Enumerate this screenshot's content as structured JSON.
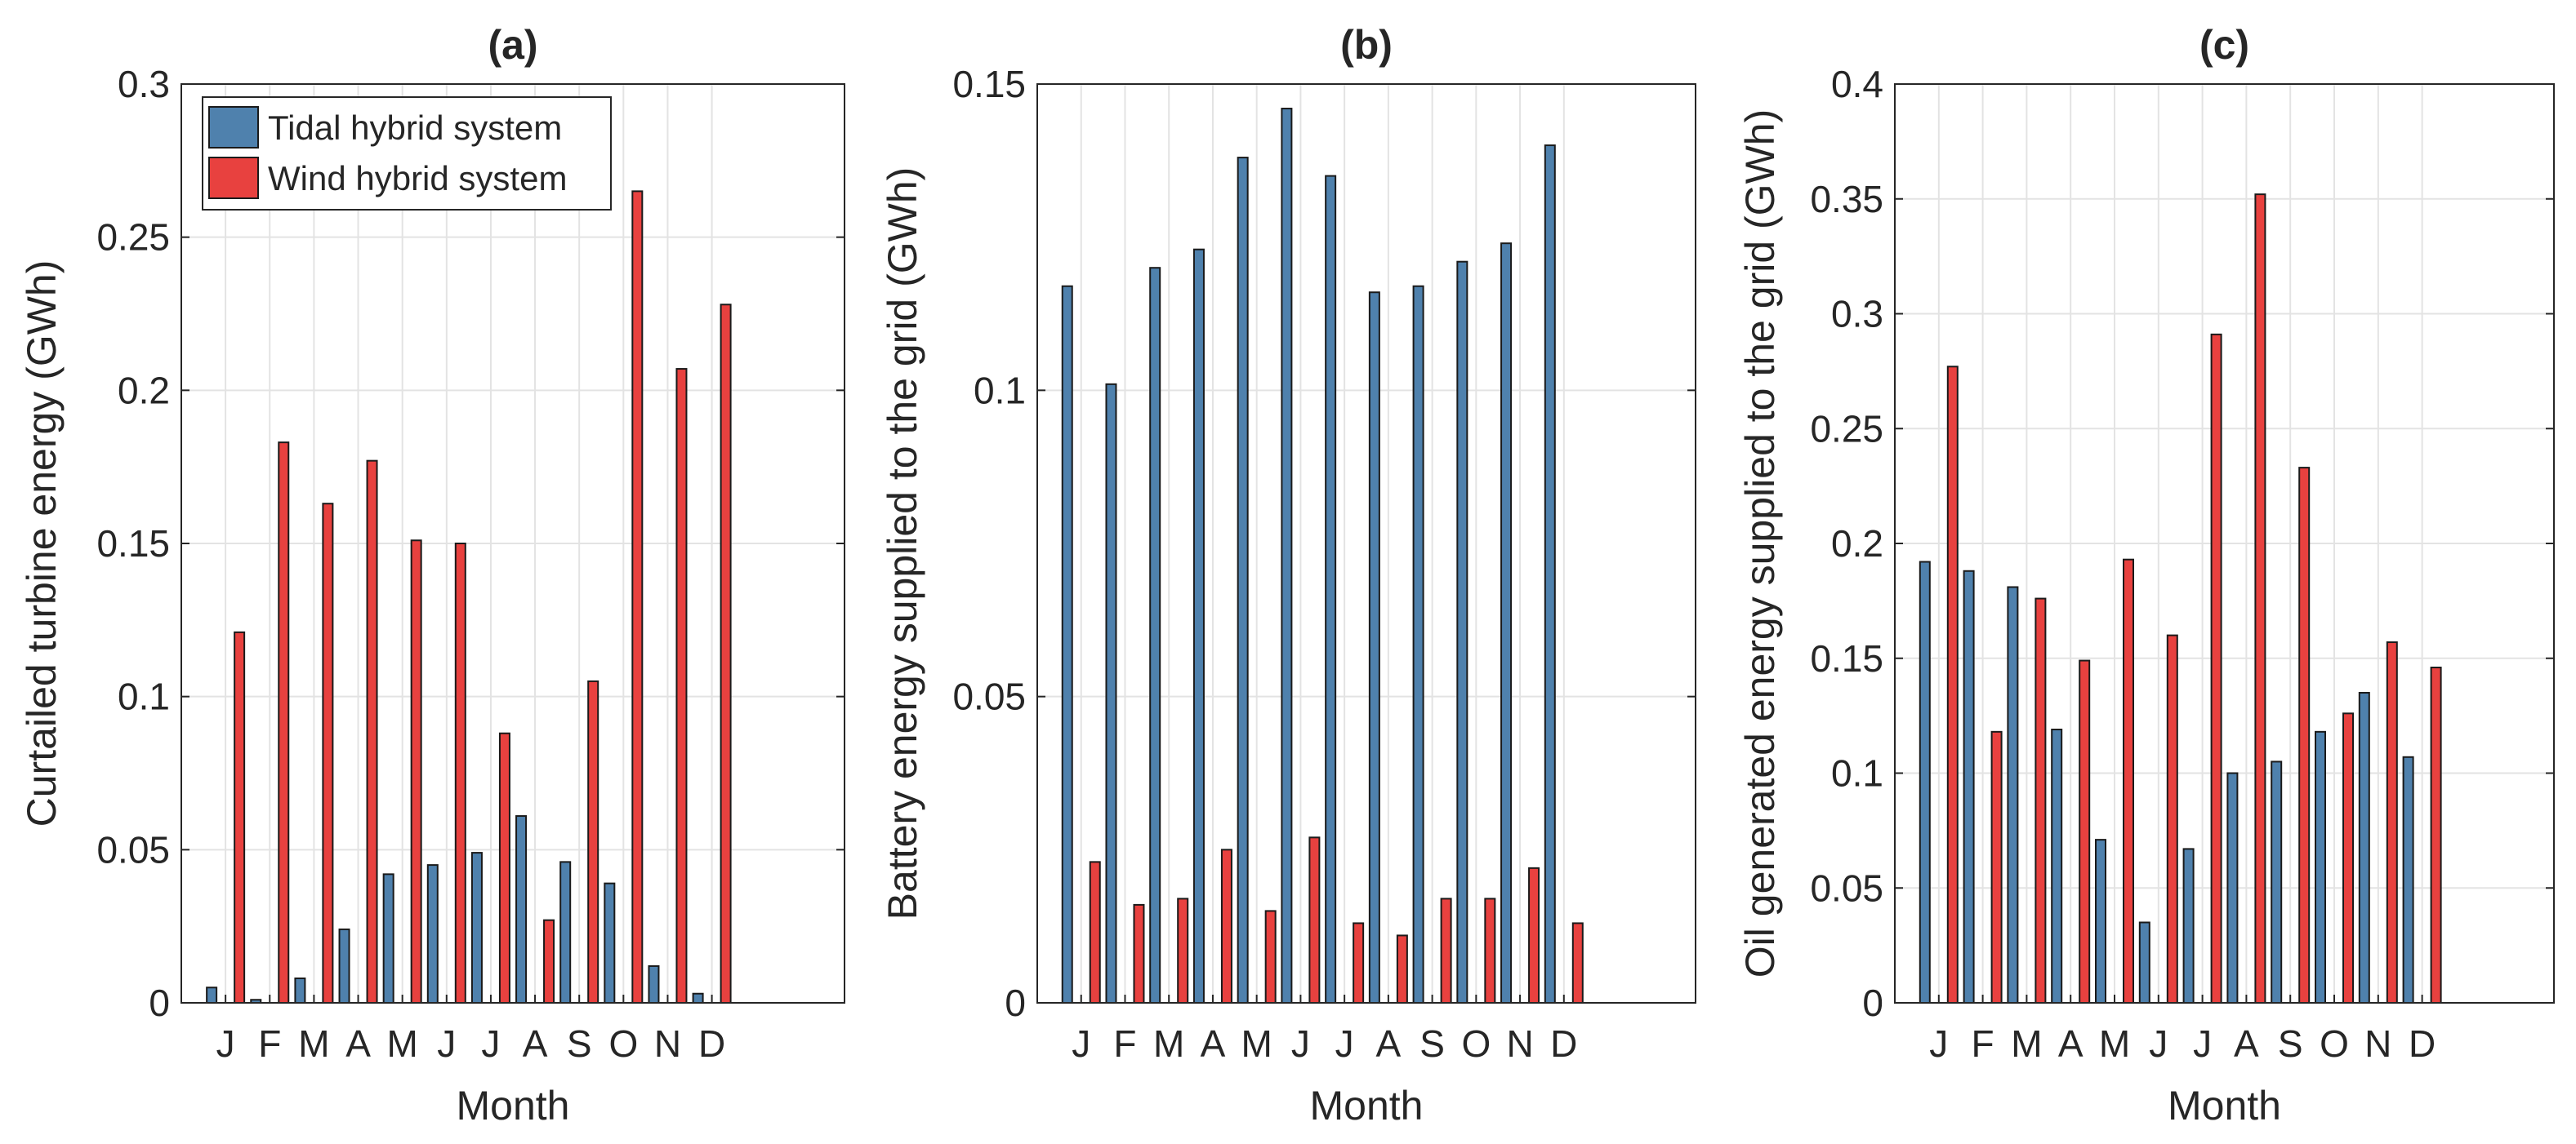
{
  "colors": {
    "tidal": "#4f81ad",
    "wind": "#e8413f",
    "grid": "#e3e3e3",
    "axis": "#262626"
  },
  "chart_data": [
    {
      "type": "bar",
      "title": "(a)",
      "xlabel": "Month",
      "ylabel": "Curtailed turbine energy (GWh)",
      "categories": [
        "J",
        "F",
        "M",
        "A",
        "M",
        "J",
        "J",
        "A",
        "S",
        "O",
        "N",
        "D"
      ],
      "ylim": [
        0,
        0.3
      ],
      "yticks": [
        0,
        0.05,
        0.1,
        0.15,
        0.2,
        0.25,
        0.3
      ],
      "ytick_labels": [
        "0",
        "0.05",
        "0.1",
        "0.15",
        "0.2",
        "0.25",
        "0.3"
      ],
      "grid": true,
      "legend": "top-left",
      "series": [
        {
          "name": "Tidal hybrid system",
          "values": [
            0.005,
            0.001,
            0.008,
            0.024,
            0.042,
            0.045,
            0.049,
            0.061,
            0.046,
            0.039,
            0.012,
            0.003
          ]
        },
        {
          "name": "Wind hybrid system",
          "values": [
            0.121,
            0.183,
            0.163,
            0.177,
            0.151,
            0.15,
            0.088,
            0.027,
            0.105,
            0.265,
            0.207,
            0.228
          ]
        }
      ]
    },
    {
      "type": "bar",
      "title": "(b)",
      "xlabel": "Month",
      "ylabel": "Battery energy supplied to the grid (GWh)",
      "categories": [
        "J",
        "F",
        "M",
        "A",
        "M",
        "J",
        "J",
        "A",
        "S",
        "O",
        "N",
        "D"
      ],
      "ylim": [
        0,
        0.15
      ],
      "yticks": [
        0,
        0.05,
        0.1,
        0.15
      ],
      "ytick_labels": [
        "0",
        "0.05",
        "0.1",
        "0.15"
      ],
      "grid": true,
      "series": [
        {
          "name": "Tidal hybrid system",
          "values": [
            0.117,
            0.101,
            0.12,
            0.123,
            0.138,
            0.146,
            0.135,
            0.116,
            0.117,
            0.121,
            0.124,
            0.14
          ]
        },
        {
          "name": "Wind hybrid system",
          "values": [
            0.023,
            0.016,
            0.017,
            0.025,
            0.015,
            0.027,
            0.013,
            0.011,
            0.017,
            0.017,
            0.022,
            0.013
          ]
        }
      ]
    },
    {
      "type": "bar",
      "title": "(c)",
      "xlabel": "Month",
      "ylabel": "Oil generated energy supplied to the grid (GWh)",
      "categories": [
        "J",
        "F",
        "M",
        "A",
        "M",
        "J",
        "J",
        "A",
        "S",
        "O",
        "N",
        "D"
      ],
      "ylim": [
        0,
        0.4
      ],
      "yticks": [
        0,
        0.05,
        0.1,
        0.15,
        0.2,
        0.25,
        0.3,
        0.35,
        0.4
      ],
      "ytick_labels": [
        "0",
        "0.05",
        "0.1",
        "0.15",
        "0.2",
        "0.25",
        "0.3",
        "0.35",
        "0.4"
      ],
      "grid": true,
      "series": [
        {
          "name": "Tidal hybrid system",
          "values": [
            0.192,
            0.188,
            0.181,
            0.119,
            0.071,
            0.035,
            0.067,
            0.1,
            0.105,
            0.118,
            0.135,
            0.107
          ]
        },
        {
          "name": "Wind hybrid system",
          "values": [
            0.277,
            0.118,
            0.176,
            0.149,
            0.193,
            0.16,
            0.291,
            0.352,
            0.233,
            0.126,
            0.157,
            0.146
          ]
        }
      ]
    }
  ]
}
